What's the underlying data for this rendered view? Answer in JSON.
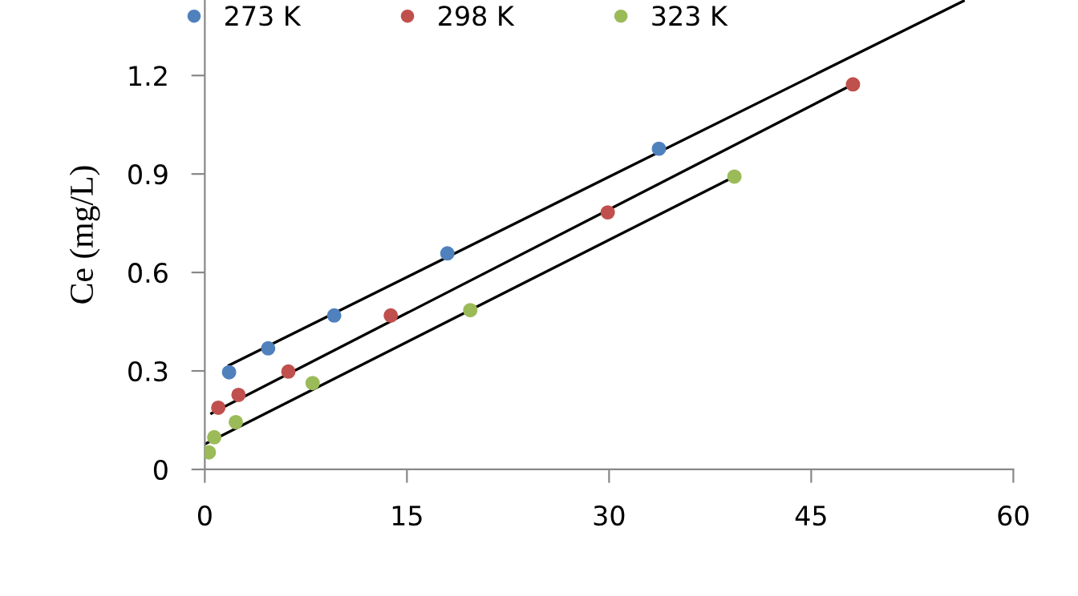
{
  "chart_data": {
    "type": "scatter",
    "ylabel": "Ce (mg/L)",
    "xlim": [
      0,
      60
    ],
    "xticks": [
      0,
      15,
      30,
      45,
      60
    ],
    "ylim": [
      0,
      1.43
    ],
    "yticks": [
      0,
      0.3,
      0.6,
      0.9,
      1.2
    ],
    "grid": false,
    "legend": "top",
    "marker": "circle",
    "series": [
      {
        "name": "273 K",
        "color": "#4f81bd",
        "x": [
          1.8,
          4.7,
          9.6,
          18.0,
          33.7
        ],
        "values": [
          0.296,
          0.369,
          0.469,
          0.658,
          0.977
        ]
      },
      {
        "name": "298 K",
        "color": "#c0504d",
        "x": [
          1.0,
          2.5,
          6.2,
          13.8,
          29.9,
          48.1
        ],
        "values": [
          0.188,
          0.227,
          0.298,
          0.469,
          0.783,
          1.173
        ]
      },
      {
        "name": "323 K",
        "color": "#9bbb59",
        "x": [
          0.3,
          0.7,
          2.3,
          8.0,
          19.7,
          39.3
        ],
        "values": [
          0.052,
          0.098,
          0.144,
          0.263,
          0.485,
          0.892
        ]
      },
      {
        "type": "line",
        "color": "#000000",
        "marker": "none",
        "x": [
          1.8,
          56.3
        ],
        "values": [
          0.317,
          1.427
        ]
      },
      {
        "type": "line",
        "color": "#000000",
        "marker": "none",
        "x": [
          0.5,
          48.1
        ],
        "values": [
          0.171,
          1.173
        ]
      },
      {
        "type": "line",
        "color": "#000000",
        "marker": "none",
        "x": [
          0.0,
          39.3
        ],
        "values": [
          0.077,
          0.892
        ]
      }
    ]
  }
}
